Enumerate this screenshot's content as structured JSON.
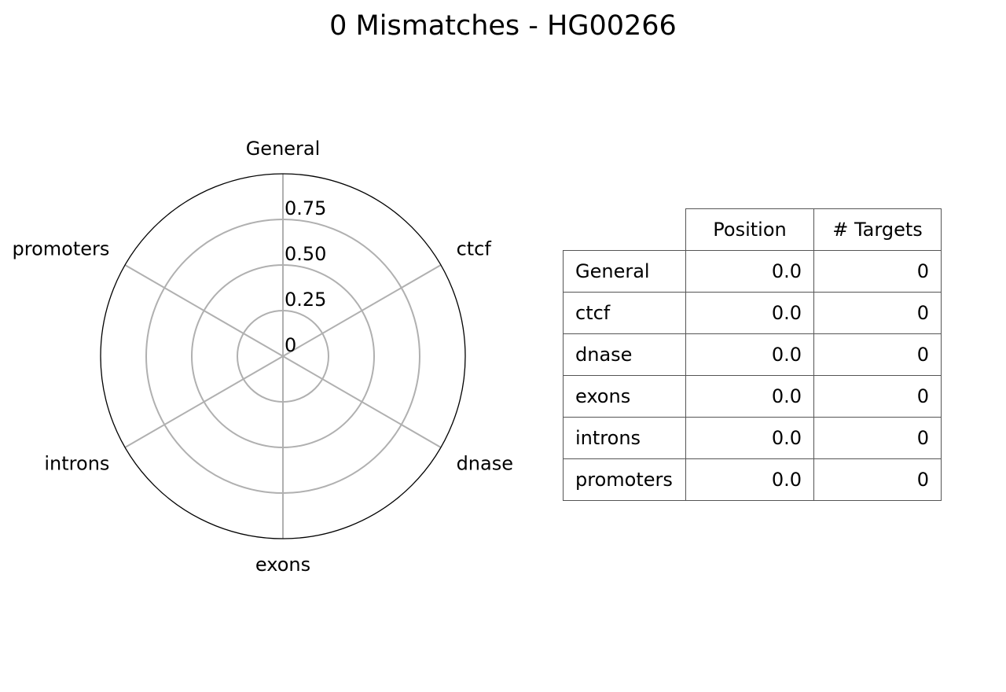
{
  "title": "0 Mismatches - HG00266",
  "chart_data": {
    "type": "radar",
    "categories": [
      "General",
      "ctcf",
      "dnase",
      "exons",
      "introns",
      "promoters"
    ],
    "values": [
      0,
      0,
      0,
      0,
      0,
      0
    ],
    "rlim": [
      0,
      1
    ],
    "radial_ticks": [
      0,
      0.25,
      0.5,
      0.75
    ],
    "radial_tick_labels": [
      "0",
      "0.25",
      "0.50",
      "0.75"
    ],
    "grid": true,
    "colors": {
      "grid": "#b0b0b0",
      "frame": "#000000"
    }
  },
  "table": {
    "columns": [
      "Position",
      "# Targets"
    ],
    "rows": [
      {
        "label": "General",
        "position": "0.0",
        "targets": "0"
      },
      {
        "label": "ctcf",
        "position": "0.0",
        "targets": "0"
      },
      {
        "label": "dnase",
        "position": "0.0",
        "targets": "0"
      },
      {
        "label": "exons",
        "position": "0.0",
        "targets": "0"
      },
      {
        "label": "introns",
        "position": "0.0",
        "targets": "0"
      },
      {
        "label": "promoters",
        "position": "0.0",
        "targets": "0"
      }
    ]
  }
}
